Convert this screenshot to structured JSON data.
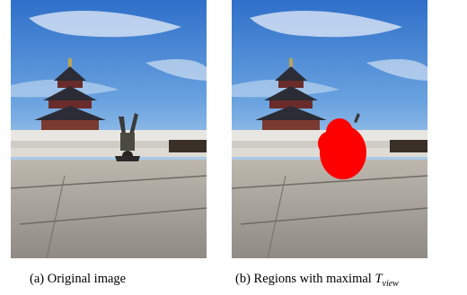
{
  "figure": {
    "panels": [
      {
        "image": "temple-of-heaven-handstand-photo",
        "caption": {
          "prefix": "(a) Original image",
          "variable": "",
          "subscript": ""
        }
      },
      {
        "image": "temple-of-heaven-red-region-overlay",
        "caption": {
          "prefix": "(b) Regions with maximal ",
          "variable": "T",
          "subscript": "view"
        }
      }
    ],
    "colors": {
      "sky": "#4f8fd8",
      "pavement": "#a9a49b",
      "highlight": "#ff0000",
      "roof": "#2b2c35"
    }
  }
}
